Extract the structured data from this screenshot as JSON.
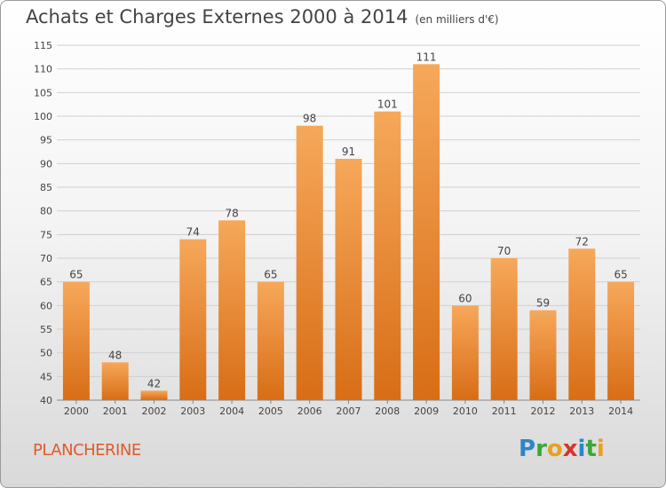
{
  "title": "Achats et Charges Externes 2000 à 2014",
  "subtitle": "(en milliers d'€)",
  "town": "PLANCHERINE",
  "logo": {
    "text": "Proxiti",
    "letters": [
      "P",
      "r",
      "o",
      "x",
      "i",
      "t",
      "i"
    ],
    "colors": [
      "#2e86c8",
      "#3aa63a",
      "#e8a020",
      "#d8342c",
      "#2e86c8",
      "#3aa63a",
      "#e8a020"
    ]
  },
  "colors": {
    "bar_top": "#f6a85a",
    "bar_bottom": "#d86d16",
    "grid": "#d0d0d0",
    "text": "#444444",
    "town": "#e05a2a"
  },
  "chart_data": {
    "type": "bar",
    "categories": [
      "2000",
      "2001",
      "2002",
      "2003",
      "2004",
      "2005",
      "2006",
      "2007",
      "2008",
      "2009",
      "2010",
      "2011",
      "2012",
      "2013",
      "2014"
    ],
    "values": [
      65,
      48,
      42,
      74,
      78,
      65,
      98,
      91,
      101,
      111,
      60,
      70,
      59,
      72,
      65
    ],
    "ylim": [
      40,
      115
    ],
    "yticks": [
      40,
      45,
      50,
      55,
      60,
      65,
      70,
      75,
      80,
      85,
      90,
      95,
      100,
      105,
      110,
      115
    ],
    "grid": true
  }
}
